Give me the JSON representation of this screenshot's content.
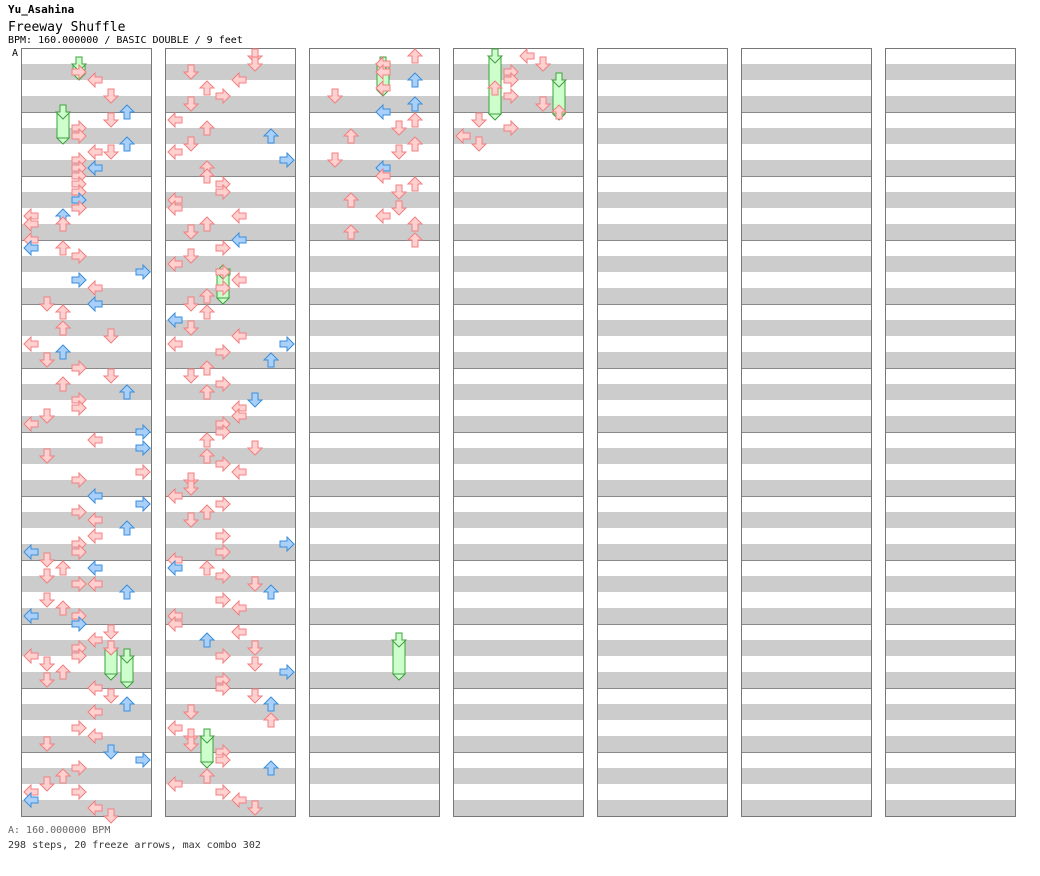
{
  "header": {
    "artist": "Yu_Asahina",
    "title": "Freeway Shuffle",
    "meta": "BPM: 160.000000 / BASIC DOUBLE / 9 feet",
    "marker": "A"
  },
  "footer": {
    "bpm_line": "A: 160.000000 BPM",
    "stats": "298 steps, 20 freeze arrows, max combo 302"
  },
  "colors": {
    "step": "#f08080",
    "step_fill": "#ffd0d0",
    "alt": "#3c8edc",
    "alt_fill": "#a8d0f8",
    "freeze": "#40a040",
    "freeze_fill": "#ccffcc",
    "band": "#cccccc"
  },
  "chart_data": {
    "type": "step-chart",
    "panels_visible": 7,
    "measures_per_panel": 12,
    "rows_per_measure": 8,
    "lanes": 8,
    "arrow_icons": [
      "left-arrow-icon",
      "down-arrow-icon",
      "up-arrow-icon",
      "right-arrow-icon"
    ],
    "notes": [
      [
        0,
        2,
        1,
        3,
        0
      ],
      [
        0,
        3,
        1,
        4,
        0
      ],
      [
        0,
        5,
        1,
        5,
        0
      ],
      [
        0,
        7,
        1,
        6,
        1
      ],
      [
        0,
        8,
        1,
        5,
        0
      ],
      [
        0,
        9,
        1,
        3,
        0
      ],
      [
        0,
        10,
        1,
        3,
        0
      ],
      [
        0,
        11,
        1,
        6,
        1
      ],
      [
        0,
        12,
        1,
        5,
        0
      ],
      [
        0,
        12,
        1,
        4,
        0
      ],
      [
        0,
        13,
        1,
        3,
        0
      ],
      [
        0,
        14,
        1,
        3,
        0
      ],
      [
        0,
        14,
        1,
        4,
        0
      ],
      [
        0,
        14,
        1,
        4,
        1
      ],
      [
        0,
        15,
        1,
        3,
        0
      ],
      [
        0,
        16,
        1,
        3,
        0
      ],
      [
        0,
        17,
        1,
        3,
        0
      ],
      [
        0,
        18,
        1,
        3,
        1
      ],
      [
        0,
        19,
        1,
        3,
        0
      ],
      [
        0,
        20,
        1,
        0,
        0
      ],
      [
        0,
        20,
        1,
        2,
        1
      ],
      [
        0,
        21,
        1,
        2,
        0
      ],
      [
        0,
        21,
        1,
        0,
        0
      ],
      [
        0,
        23,
        1,
        0,
        0
      ],
      [
        0,
        24,
        1,
        0,
        1
      ],
      [
        0,
        24,
        1,
        2,
        0
      ],
      [
        0,
        25,
        1,
        3,
        0
      ],
      [
        0,
        27,
        1,
        7,
        1
      ],
      [
        0,
        28,
        1,
        3,
        1
      ],
      [
        0,
        29,
        1,
        4,
        0
      ],
      [
        0,
        31,
        1,
        1,
        0
      ],
      [
        0,
        31,
        1,
        4,
        1
      ],
      [
        0,
        32,
        1,
        2,
        0
      ],
      [
        0,
        34,
        1,
        2,
        0
      ],
      [
        0,
        35,
        1,
        5,
        0
      ],
      [
        0,
        36,
        1,
        0,
        0
      ],
      [
        0,
        37,
        1,
        2,
        1
      ],
      [
        0,
        38,
        1,
        1,
        0
      ],
      [
        0,
        39,
        1,
        3,
        0
      ],
      [
        0,
        40,
        1,
        5,
        0
      ],
      [
        0,
        41,
        1,
        2,
        0
      ],
      [
        0,
        42,
        1,
        6,
        1
      ],
      [
        0,
        43,
        1,
        3,
        0
      ],
      [
        0,
        44,
        1,
        3,
        0
      ],
      [
        0,
        45,
        1,
        1,
        0
      ],
      [
        0,
        46,
        1,
        0,
        0
      ],
      [
        0,
        47,
        1,
        7,
        1
      ],
      [
        0,
        48,
        1,
        4,
        0
      ],
      [
        0,
        49,
        1,
        7,
        1
      ],
      [
        0,
        50,
        1,
        1,
        0
      ],
      [
        0,
        52,
        1,
        7,
        0
      ],
      [
        0,
        53,
        1,
        3,
        0
      ],
      [
        0,
        55,
        1,
        4,
        1
      ],
      [
        0,
        56,
        1,
        7,
        0
      ],
      [
        0,
        56,
        1,
        7,
        1
      ],
      [
        0,
        57,
        1,
        3,
        0
      ],
      [
        0,
        58,
        1,
        4,
        0
      ],
      [
        0,
        59,
        1,
        6,
        1
      ],
      [
        0,
        60,
        1,
        4,
        0
      ],
      [
        0,
        61,
        1,
        3,
        0
      ],
      [
        0,
        62,
        1,
        3,
        0
      ],
      [
        0,
        62,
        1,
        0,
        1
      ],
      [
        0,
        63,
        1,
        1,
        0
      ],
      [
        0,
        64,
        1,
        2,
        0
      ],
      [
        0,
        64,
        1,
        4,
        1
      ],
      [
        0,
        65,
        1,
        1,
        0
      ],
      [
        0,
        66,
        1,
        3,
        0
      ],
      [
        0,
        66,
        1,
        4,
        0
      ],
      [
        0,
        67,
        1,
        6,
        1
      ],
      [
        0,
        68,
        1,
        1,
        0
      ],
      [
        0,
        69,
        1,
        2,
        0
      ],
      [
        0,
        70,
        1,
        0,
        1
      ],
      [
        0,
        70,
        1,
        3,
        0
      ],
      [
        0,
        71,
        1,
        3,
        1
      ],
      [
        0,
        72,
        1,
        5,
        0
      ],
      [
        0,
        73,
        1,
        4,
        0
      ],
      [
        0,
        74,
        1,
        3,
        0
      ],
      [
        0,
        74,
        1,
        5,
        0
      ],
      [
        0,
        75,
        1,
        0,
        0
      ],
      [
        0,
        75,
        1,
        3,
        0
      ],
      [
        0,
        76,
        1,
        1,
        0
      ],
      [
        0,
        77,
        1,
        2,
        0
      ],
      [
        0,
        78,
        1,
        1,
        0
      ],
      [
        0,
        79,
        1,
        4,
        0
      ],
      [
        0,
        80,
        1,
        5,
        0
      ],
      [
        0,
        81,
        1,
        6,
        1
      ],
      [
        0,
        82,
        1,
        4,
        0
      ],
      [
        0,
        84,
        1,
        3,
        0
      ],
      [
        0,
        85,
        1,
        4,
        0
      ],
      [
        0,
        86,
        1,
        1,
        0
      ],
      [
        0,
        87,
        1,
        5,
        1
      ],
      [
        0,
        88,
        1,
        7,
        1
      ],
      [
        0,
        89,
        1,
        3,
        0
      ],
      [
        0,
        90,
        1,
        2,
        0
      ],
      [
        0,
        91,
        1,
        1,
        0
      ],
      [
        0,
        92,
        1,
        0,
        0
      ],
      [
        0,
        92,
        1,
        3,
        0
      ],
      [
        0,
        93,
        1,
        0,
        1
      ],
      [
        0,
        94,
        1,
        4,
        0
      ],
      [
        0,
        95,
        1,
        5,
        0
      ],
      [
        1,
        0,
        1,
        5,
        0
      ],
      [
        1,
        1,
        1,
        5,
        0
      ],
      [
        1,
        2,
        1,
        1,
        0
      ],
      [
        1,
        3,
        1,
        4,
        0
      ],
      [
        1,
        4,
        1,
        2,
        0
      ],
      [
        1,
        5,
        1,
        3,
        0
      ],
      [
        1,
        6,
        1,
        1,
        0
      ],
      [
        1,
        8,
        1,
        0,
        0
      ],
      [
        1,
        9,
        1,
        2,
        0
      ],
      [
        1,
        10,
        1,
        6,
        1
      ],
      [
        1,
        11,
        1,
        1,
        0
      ],
      [
        1,
        12,
        1,
        0,
        0
      ],
      [
        1,
        13,
        1,
        7,
        1
      ],
      [
        1,
        14,
        1,
        2,
        0
      ],
      [
        1,
        15,
        1,
        2,
        0
      ],
      [
        1,
        16,
        1,
        3,
        0
      ],
      [
        1,
        17,
        1,
        3,
        0
      ],
      [
        1,
        18,
        1,
        0,
        0
      ],
      [
        1,
        19,
        1,
        0,
        0
      ],
      [
        1,
        20,
        1,
        4,
        0
      ],
      [
        1,
        21,
        1,
        2,
        0
      ],
      [
        1,
        22,
        1,
        1,
        0
      ],
      [
        1,
        23,
        1,
        4,
        1
      ],
      [
        1,
        24,
        1,
        3,
        0
      ],
      [
        1,
        25,
        1,
        1,
        0
      ],
      [
        1,
        26,
        1,
        0,
        0
      ],
      [
        1,
        27,
        1,
        3,
        0
      ],
      [
        1,
        28,
        1,
        4,
        0
      ],
      [
        1,
        29,
        1,
        3,
        0
      ],
      [
        1,
        30,
        1,
        2,
        0
      ],
      [
        1,
        31,
        1,
        1,
        0
      ],
      [
        1,
        32,
        1,
        2,
        0
      ],
      [
        1,
        33,
        1,
        0,
        1
      ],
      [
        1,
        34,
        1,
        1,
        0
      ],
      [
        1,
        35,
        1,
        4,
        0
      ],
      [
        1,
        36,
        1,
        0,
        0
      ],
      [
        1,
        36,
        1,
        7,
        1
      ],
      [
        1,
        37,
        1,
        3,
        0
      ],
      [
        1,
        38,
        1,
        6,
        1
      ],
      [
        1,
        39,
        1,
        2,
        0
      ],
      [
        1,
        40,
        1,
        1,
        0
      ],
      [
        1,
        41,
        1,
        3,
        0
      ],
      [
        1,
        42,
        1,
        2,
        0
      ],
      [
        1,
        43,
        1,
        5,
        1
      ],
      [
        1,
        44,
        1,
        4,
        0
      ],
      [
        1,
        45,
        1,
        4,
        0
      ],
      [
        1,
        46,
        1,
        3,
        0
      ],
      [
        1,
        47,
        1,
        3,
        0
      ],
      [
        1,
        48,
        1,
        2,
        0
      ],
      [
        1,
        49,
        1,
        5,
        0
      ],
      [
        1,
        50,
        1,
        2,
        0
      ],
      [
        1,
        51,
        1,
        3,
        0
      ],
      [
        1,
        52,
        1,
        4,
        0
      ],
      [
        1,
        53,
        1,
        1,
        0
      ],
      [
        1,
        54,
        1,
        1,
        0
      ],
      [
        1,
        55,
        1,
        0,
        0
      ],
      [
        1,
        56,
        1,
        3,
        0
      ],
      [
        1,
        57,
        1,
        2,
        0
      ],
      [
        1,
        58,
        1,
        1,
        0
      ],
      [
        1,
        60,
        1,
        3,
        0
      ],
      [
        1,
        61,
        1,
        7,
        1
      ],
      [
        1,
        62,
        1,
        3,
        0
      ],
      [
        1,
        63,
        1,
        0,
        0
      ],
      [
        1,
        64,
        1,
        0,
        1
      ],
      [
        1,
        64,
        1,
        2,
        0
      ],
      [
        1,
        65,
        1,
        3,
        0
      ],
      [
        1,
        66,
        1,
        5,
        0
      ],
      [
        1,
        67,
        1,
        6,
        1
      ],
      [
        1,
        68,
        1,
        3,
        0
      ],
      [
        1,
        69,
        1,
        4,
        0
      ],
      [
        1,
        70,
        1,
        0,
        0
      ],
      [
        1,
        71,
        1,
        0,
        0
      ],
      [
        1,
        72,
        1,
        4,
        0
      ],
      [
        1,
        73,
        1,
        2,
        1
      ],
      [
        1,
        74,
        1,
        5,
        0
      ],
      [
        1,
        75,
        1,
        3,
        0
      ],
      [
        1,
        76,
        1,
        5,
        0
      ],
      [
        1,
        77,
        1,
        7,
        1
      ],
      [
        1,
        78,
        1,
        3,
        0
      ],
      [
        1,
        79,
        1,
        3,
        0
      ],
      [
        1,
        80,
        1,
        5,
        0
      ],
      [
        1,
        81,
        1,
        6,
        1
      ],
      [
        1,
        82,
        1,
        1,
        0
      ],
      [
        1,
        83,
        1,
        6,
        0
      ],
      [
        1,
        84,
        1,
        0,
        0
      ],
      [
        1,
        85,
        1,
        1,
        0
      ],
      [
        1,
        86,
        1,
        1,
        0
      ],
      [
        1,
        87,
        1,
        3,
        0
      ],
      [
        1,
        88,
        1,
        3,
        0
      ],
      [
        1,
        89,
        1,
        6,
        1
      ],
      [
        1,
        90,
        1,
        2,
        0
      ],
      [
        1,
        91,
        1,
        0,
        0
      ],
      [
        1,
        92,
        1,
        3,
        0
      ],
      [
        1,
        93,
        1,
        4,
        0
      ],
      [
        1,
        94,
        1,
        5,
        0
      ],
      [
        2,
        0,
        1,
        6,
        0
      ],
      [
        2,
        1,
        1,
        4,
        0
      ],
      [
        2,
        2,
        1,
        4,
        0
      ],
      [
        2,
        3,
        1,
        6,
        1
      ],
      [
        2,
        4,
        1,
        4,
        0
      ],
      [
        2,
        5,
        1,
        1,
        0
      ],
      [
        2,
        6,
        1,
        6,
        1
      ],
      [
        2,
        7,
        1,
        4,
        1
      ],
      [
        2,
        8,
        1,
        6,
        0
      ],
      [
        2,
        9,
        1,
        5,
        0
      ],
      [
        2,
        10,
        1,
        2,
        0
      ],
      [
        2,
        11,
        1,
        6,
        0
      ],
      [
        2,
        12,
        1,
        5,
        0
      ],
      [
        2,
        13,
        1,
        1,
        0
      ],
      [
        2,
        14,
        1,
        4,
        1
      ],
      [
        2,
        15,
        1,
        4,
        0
      ],
      [
        2,
        16,
        1,
        6,
        0
      ],
      [
        2,
        17,
        1,
        5,
        0
      ],
      [
        2,
        18,
        1,
        2,
        0
      ],
      [
        2,
        19,
        1,
        5,
        0
      ],
      [
        2,
        20,
        1,
        4,
        0
      ],
      [
        2,
        21,
        1,
        6,
        0
      ],
      [
        2,
        22,
        1,
        2,
        0
      ],
      [
        2,
        23,
        1,
        6,
        0
      ],
      [
        3,
        0,
        1,
        4,
        0
      ],
      [
        3,
        1,
        1,
        5,
        0
      ],
      [
        3,
        2,
        1,
        3,
        0
      ],
      [
        3,
        3,
        1,
        3,
        0
      ],
      [
        3,
        4,
        1,
        2,
        0
      ],
      [
        3,
        5,
        1,
        3,
        0
      ],
      [
        3,
        6,
        1,
        5,
        0
      ],
      [
        3,
        7,
        1,
        6,
        0
      ],
      [
        3,
        8,
        1,
        1,
        0
      ],
      [
        3,
        9,
        1,
        3,
        0
      ],
      [
        3,
        10,
        1,
        0,
        0
      ],
      [
        3,
        11,
        1,
        1,
        0
      ]
    ],
    "freezes": [
      [
        0,
        1,
        2,
        1,
        3
      ],
      [
        0,
        7,
        10,
        1,
        2
      ],
      [
        0,
        74,
        77,
        1,
        5
      ],
      [
        0,
        75,
        78,
        1,
        6
      ],
      [
        1,
        27,
        30,
        0,
        3
      ],
      [
        1,
        85,
        88,
        1,
        2
      ],
      [
        2,
        1,
        4,
        1,
        4
      ],
      [
        2,
        73,
        77,
        1,
        5
      ],
      [
        3,
        0,
        7,
        1,
        2
      ],
      [
        3,
        3,
        7,
        1,
        6
      ]
    ]
  }
}
